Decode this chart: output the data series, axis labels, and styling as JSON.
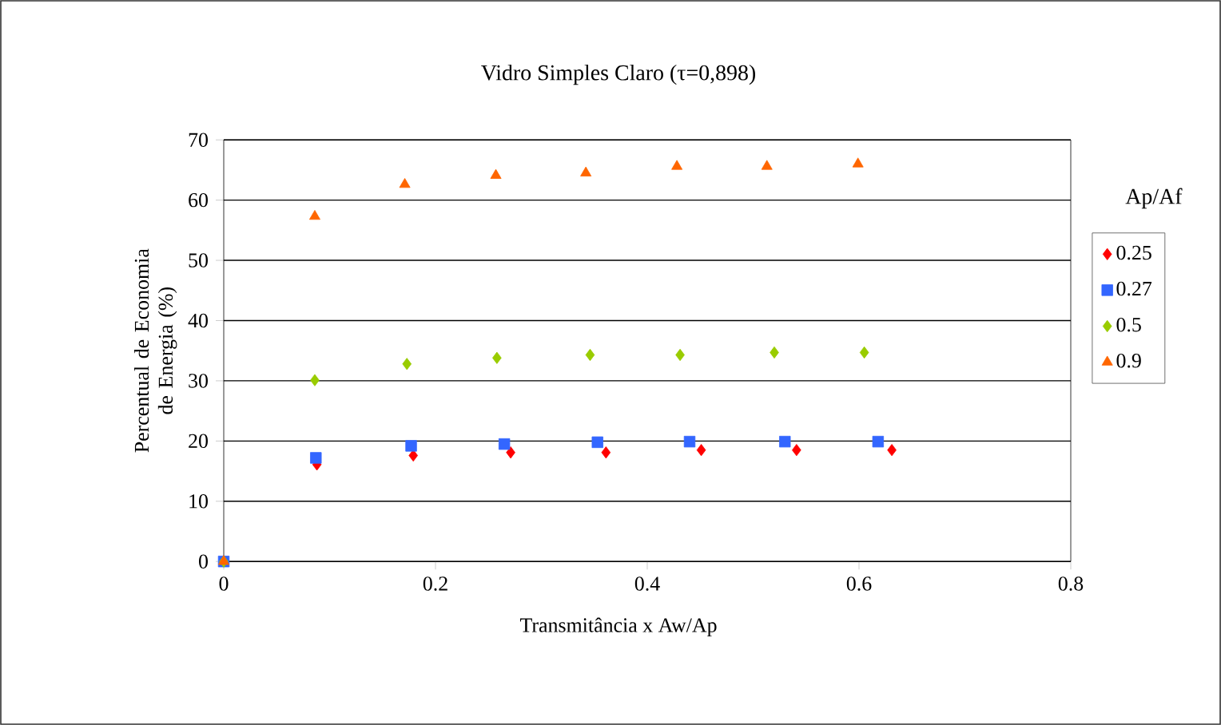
{
  "chart_data": {
    "type": "scatter",
    "title": "Vidro Simples Claro (τ=0,898)",
    "xlabel": "Transmitância x Aw/Ap",
    "ylabel": "Percentual de Economia de Energia (%)",
    "legend_title": "Ap/Af",
    "xlim": [
      0,
      0.8
    ],
    "ylim": [
      0,
      70
    ],
    "xticks": [
      0,
      0.2,
      0.4,
      0.6,
      0.8
    ],
    "yticks": [
      0,
      10,
      20,
      30,
      40,
      50,
      60,
      70
    ],
    "grid": "y",
    "legend": "right",
    "series": [
      {
        "name": "0.25",
        "color": "#ff0000",
        "marker": "diamond",
        "x": [
          0.088,
          0.179,
          0.271,
          0.361,
          0.451,
          0.541,
          0.631
        ],
        "values": [
          16.1,
          17.6,
          18.1,
          18.1,
          18.5,
          18.5,
          18.5
        ]
      },
      {
        "name": "0.27",
        "color": "#3366ff",
        "marker": "square",
        "x": [
          0,
          0.087,
          0.177,
          0.265,
          0.353,
          0.44,
          0.53,
          0.618
        ],
        "values": [
          0,
          17.2,
          19.2,
          19.5,
          19.8,
          19.9,
          19.9,
          19.9
        ]
      },
      {
        "name": "0.5",
        "color": "#99cc00",
        "marker": "diamond",
        "x": [
          0,
          0.086,
          0.173,
          0.258,
          0.346,
          0.431,
          0.52,
          0.605
        ],
        "values": [
          0,
          30.1,
          32.8,
          33.8,
          34.3,
          34.3,
          34.7,
          34.7
        ]
      },
      {
        "name": "0.9",
        "color": "#ff6600",
        "marker": "triangle",
        "x": [
          0,
          0.086,
          0.171,
          0.257,
          0.342,
          0.428,
          0.513,
          0.599
        ],
        "values": [
          0,
          57.3,
          62.6,
          64.1,
          64.5,
          65.6,
          65.6,
          66.0
        ]
      }
    ]
  }
}
